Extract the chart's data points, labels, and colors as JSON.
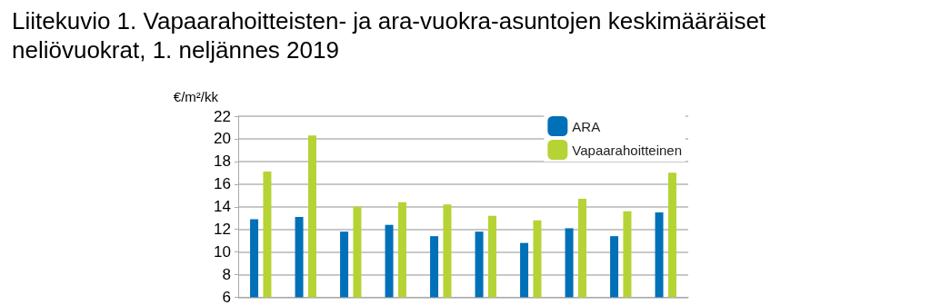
{
  "chart_data": {
    "type": "bar",
    "title": "Liitekuvio 1. Vapaarahoitteisten- ja ara-vuokra-asuntojen keskimääräiset neliövuokrat, 1. neljännes 2019",
    "ylabel": "€/m²/kk",
    "categories": [
      null,
      null,
      null,
      null,
      null,
      null,
      null,
      null,
      null,
      null
    ],
    "series": [
      {
        "name": "ARA",
        "color": "#0070b8",
        "values": [
          12.9,
          13.1,
          11.8,
          12.4,
          11.4,
          11.8,
          10.8,
          12.1,
          11.4,
          13.5
        ]
      },
      {
        "name": "Vapaarahoitteinen",
        "color": "#b5d334",
        "values": [
          17.1,
          20.3,
          14.0,
          14.4,
          14.2,
          13.2,
          12.8,
          14.7,
          13.6,
          17.0
        ]
      }
    ],
    "ylim": [
      6,
      22
    ],
    "yticks": [
      6,
      8,
      10,
      12,
      14,
      16,
      18,
      20,
      22
    ],
    "grid": "y",
    "legend": "top right"
  }
}
